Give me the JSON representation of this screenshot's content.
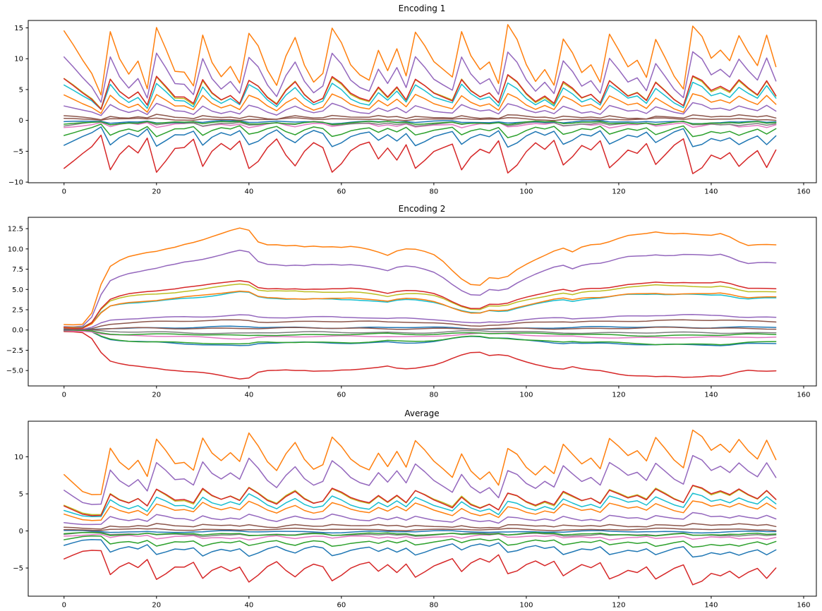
{
  "figure": {
    "background": "#ffffff"
  },
  "chart_data": [
    {
      "type": "line",
      "title": "Encoding 1",
      "xlabel": "",
      "ylabel": "",
      "xlim": [
        -7.75,
        162.75
      ],
      "ylim": [
        -10.1,
        16.2
      ],
      "x_tick_values": [
        0,
        20,
        40,
        60,
        80,
        100,
        120,
        140,
        160
      ],
      "x_tick_labels": [
        "0",
        "20",
        "40",
        "60",
        "80",
        "100",
        "120",
        "140",
        "160"
      ],
      "y_tick_values": [
        -10,
        -5,
        0,
        5,
        10,
        15
      ],
      "y_tick_labels": [
        "−10",
        "−5",
        "0",
        "5",
        "10",
        "15"
      ],
      "grid": false,
      "legend": "none",
      "x_start": 0,
      "x_step": 2,
      "series_formula": "values[t] = scale * base[t] (base is the top orange series, read off the plot)",
      "wobble": 0.18,
      "base": [
        14.4,
        12.2,
        9.8,
        7.6,
        4.1,
        14.3,
        9.9,
        7.4,
        9.6,
        5.2,
        15.2,
        11.8,
        8.1,
        7.9,
        5.6,
        13.8,
        9.4,
        7.1,
        8.8,
        6.1,
        14.1,
        12.0,
        8.0,
        5.5,
        10.3,
        13.4,
        9.0,
        6.3,
        7.7,
        15.0,
        12.6,
        9.0,
        7.4,
        6.6,
        11.5,
        8.2,
        11.7,
        7.2,
        14.2,
        12.0,
        9.4,
        8.2,
        7.0,
        14.4,
        10.5,
        8.2,
        9.4,
        5.9,
        15.5,
        13.2,
        9.2,
        6.5,
        8.4,
        5.8,
        13.2,
        10.9,
        7.7,
        9.0,
        6.2,
        14.0,
        11.4,
        8.6,
        9.6,
        6.8,
        13.0,
        10.2,
        7.2,
        5.2,
        15.4,
        13.7,
        10.1,
        11.4,
        9.7,
        13.8,
        11.2,
        9.0,
        13.9,
        8.7
      ],
      "series": [
        {
          "name": "series-0",
          "color": "#1f77b4",
          "scale": -0.28
        },
        {
          "name": "series-1",
          "color": "#ff7f0e",
          "scale": 1.0
        },
        {
          "name": "series-2",
          "color": "#2ca02c",
          "scale": -0.17
        },
        {
          "name": "series-3",
          "color": "#d62728",
          "scale": -0.55
        },
        {
          "name": "series-4",
          "color": "#9467bd",
          "scale": 0.72
        },
        {
          "name": "series-5",
          "color": "#8c564b",
          "scale": 0.055
        },
        {
          "name": "series-6",
          "color": "#e377c2",
          "scale": -0.075
        },
        {
          "name": "series-7",
          "color": "#7f7f7f",
          "scale": -0.055
        },
        {
          "name": "series-8",
          "color": "#bcbd22",
          "scale": 0.465
        },
        {
          "name": "series-9",
          "color": "#17becf",
          "scale": 0.4
        },
        {
          "name": "series-10",
          "color": "#1f77b4",
          "scale": -0.025
        },
        {
          "name": "series-11",
          "color": "#ff7f0e",
          "scale": 0.285
        },
        {
          "name": "series-12",
          "color": "#2ca02c",
          "scale": -0.04
        },
        {
          "name": "series-13",
          "color": "#d62728",
          "scale": 0.47
        },
        {
          "name": "series-14",
          "color": "#9467bd",
          "scale": 0.175
        },
        {
          "name": "series-15",
          "color": "#8c564b",
          "scale": 0.02
        }
      ]
    },
    {
      "type": "line",
      "title": "Encoding 2",
      "xlabel": "",
      "ylabel": "",
      "xlim": [
        -7.75,
        162.75
      ],
      "ylim": [
        -6.9,
        13.9
      ],
      "x_tick_values": [
        0,
        20,
        40,
        60,
        80,
        100,
        120,
        140,
        160
      ],
      "x_tick_labels": [
        "0",
        "20",
        "40",
        "60",
        "80",
        "100",
        "120",
        "140",
        "160"
      ],
      "y_tick_values": [
        -5,
        -2.5,
        0,
        2.5,
        5,
        7.5,
        10,
        12.5
      ],
      "y_tick_labels": [
        "−5.0",
        "−2.5",
        "0.0",
        "2.5",
        "5.0",
        "7.5",
        "10.0",
        "12.5"
      ],
      "grid": false,
      "legend": "none",
      "x_start": 0,
      "x_step": 2,
      "series_formula": "values[t] = scale * base[t] (base is the top orange series, read off the plot)",
      "wobble": 0.12,
      "base": [
        0.6,
        0.6,
        0.7,
        2.1,
        5.6,
        7.8,
        8.5,
        9.0,
        9.3,
        9.6,
        9.8,
        10.1,
        10.3,
        10.6,
        10.8,
        11.1,
        11.5,
        11.9,
        12.3,
        12.6,
        12.3,
        10.8,
        10.4,
        10.4,
        10.3,
        10.4,
        10.3,
        10.4,
        10.3,
        10.3,
        10.2,
        10.3,
        10.2,
        10.0,
        9.7,
        9.3,
        9.8,
        10.0,
        9.9,
        9.6,
        9.2,
        8.4,
        7.3,
        6.3,
        5.6,
        5.5,
        6.4,
        6.3,
        6.6,
        7.5,
        8.2,
        8.8,
        9.3,
        9.8,
        10.1,
        9.6,
        10.2,
        10.5,
        10.6,
        10.9,
        11.3,
        11.6,
        11.7,
        11.8,
        12.0,
        11.9,
        11.9,
        12.0,
        11.9,
        11.8,
        11.7,
        11.9,
        11.5,
        10.9,
        10.5,
        10.6,
        10.6,
        10.5
      ],
      "series": [
        {
          "name": "series-0",
          "color": "#1f77b4",
          "scale": -0.155
        },
        {
          "name": "series-1",
          "color": "#ff7f0e",
          "scale": 1.0
        },
        {
          "name": "series-2",
          "color": "#2ca02c",
          "scale": -0.145
        },
        {
          "name": "series-3",
          "color": "#d62728",
          "scale": -0.48
        },
        {
          "name": "series-4",
          "color": "#9467bd",
          "scale": 0.78
        },
        {
          "name": "series-5",
          "color": "#8c564b",
          "scale": 0.1
        },
        {
          "name": "series-6",
          "color": "#e377c2",
          "scale": -0.08
        },
        {
          "name": "series-7",
          "color": "#7f7f7f",
          "scale": -0.03
        },
        {
          "name": "series-8",
          "color": "#bcbd22",
          "scale": 0.455
        },
        {
          "name": "series-9",
          "color": "#17becf",
          "scale": 0.37
        },
        {
          "name": "series-10",
          "color": "#1f77b4",
          "scale": 0.03
        },
        {
          "name": "series-11",
          "color": "#ff7f0e",
          "scale": 0.38
        },
        {
          "name": "series-12",
          "color": "#2ca02c",
          "scale": -0.055
        },
        {
          "name": "series-13",
          "color": "#d62728",
          "scale": 0.49
        },
        {
          "name": "series-14",
          "color": "#9467bd",
          "scale": 0.15
        },
        {
          "name": "series-15",
          "color": "#8c564b",
          "scale": 0.02
        }
      ]
    },
    {
      "type": "line",
      "title": "Average",
      "xlabel": "",
      "ylabel": "",
      "xlim": [
        -7.75,
        162.75
      ],
      "ylim": [
        -8.8,
        14.8
      ],
      "x_tick_values": [
        0,
        20,
        40,
        60,
        80,
        100,
        120,
        140,
        160
      ],
      "x_tick_labels": [
        "0",
        "20",
        "40",
        "60",
        "80",
        "100",
        "120",
        "140",
        "160"
      ],
      "y_tick_values": [
        -5,
        0,
        5,
        10
      ],
      "y_tick_labels": [
        "−5",
        "0",
        "5",
        "10"
      ],
      "grid": false,
      "legend": "none",
      "x_start": 0,
      "x_step": 2,
      "series_formula": "values[t] = scale * base[t] (base is the top orange series; equals the mean of Encoding 1 and Encoding 2 bases)",
      "wobble": 0.15,
      "base": [
        7.5,
        6.4,
        5.3,
        4.9,
        4.9,
        11.1,
        9.2,
        8.2,
        9.5,
        7.4,
        12.5,
        11.0,
        9.2,
        9.3,
        8.2,
        12.5,
        10.5,
        9.5,
        10.6,
        9.4,
        13.2,
        11.4,
        9.2,
        8.0,
        10.3,
        11.9,
        9.7,
        8.4,
        9.0,
        12.7,
        11.4,
        9.7,
        8.8,
        8.3,
        10.6,
        8.8,
        10.8,
        8.6,
        12.1,
        10.8,
        9.3,
        8.3,
        7.2,
        10.4,
        8.1,
        6.9,
        7.9,
        6.1,
        11.1,
        10.4,
        8.7,
        7.7,
        8.9,
        7.8,
        11.7,
        10.3,
        9.0,
        9.8,
        8.4,
        12.5,
        11.4,
        10.1,
        10.7,
        9.3,
        12.5,
        11.1,
        9.6,
        8.6,
        13.7,
        12.8,
        10.9,
        11.7,
        10.6,
        12.4,
        10.9,
        9.8,
        12.3,
        9.6
      ],
      "series": [
        {
          "name": "series-0",
          "color": "#1f77b4",
          "scale": -0.26
        },
        {
          "name": "series-1",
          "color": "#ff7f0e",
          "scale": 1.0
        },
        {
          "name": "series-2",
          "color": "#2ca02c",
          "scale": -0.16
        },
        {
          "name": "series-3",
          "color": "#d62728",
          "scale": -0.52
        },
        {
          "name": "series-4",
          "color": "#9467bd",
          "scale": 0.74
        },
        {
          "name": "series-5",
          "color": "#8c564b",
          "scale": 0.07
        },
        {
          "name": "series-6",
          "color": "#e377c2",
          "scale": -0.085
        },
        {
          "name": "series-7",
          "color": "#7f7f7f",
          "scale": -0.05
        },
        {
          "name": "series-8",
          "color": "#bcbd22",
          "scale": 0.45
        },
        {
          "name": "series-9",
          "color": "#17becf",
          "scale": 0.37
        },
        {
          "name": "series-10",
          "color": "#1f77b4",
          "scale": -0.01
        },
        {
          "name": "series-11",
          "color": "#ff7f0e",
          "scale": 0.3
        },
        {
          "name": "series-12",
          "color": "#2ca02c",
          "scale": -0.045
        },
        {
          "name": "series-13",
          "color": "#d62728",
          "scale": 0.45
        },
        {
          "name": "series-14",
          "color": "#9467bd",
          "scale": 0.17
        },
        {
          "name": "series-15",
          "color": "#8c564b",
          "scale": 0.02
        }
      ]
    }
  ]
}
